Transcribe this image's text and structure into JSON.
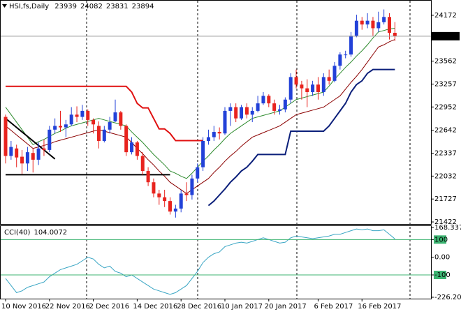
{
  "chart_data": [
    {
      "type": "candlestick",
      "title": "HSI,fs,Daily",
      "categories": [
        "10 Nov 2016",
        null,
        null,
        null,
        null,
        null,
        null,
        null,
        "22 Nov 2016",
        null,
        null,
        null,
        null,
        null,
        null,
        null,
        "2 Dec 2016",
        null,
        null,
        null,
        null,
        null,
        null,
        null,
        "14 Dec 2016",
        null,
        null,
        null,
        null,
        null,
        null,
        null,
        "28 Dec 2016",
        null,
        null,
        null,
        null,
        null,
        null,
        null,
        "10 Jan 2017",
        null,
        null,
        null,
        null,
        null,
        null,
        null,
        "20 Jan 2017",
        null,
        null,
        null,
        null,
        null,
        null,
        null,
        null,
        "6 Feb 2017",
        null,
        null,
        null,
        null,
        null,
        null,
        null,
        "16 Feb 2017",
        null,
        null,
        null,
        null,
        null,
        null
      ],
      "open": [
        22820,
        22300,
        22400,
        22290,
        22200,
        22340,
        22250,
        22400,
        22380,
        22650,
        22700,
        22680,
        22720,
        22850,
        22820,
        22900,
        22780,
        22700,
        22500,
        22650,
        22760,
        22880,
        22700,
        22350,
        22480,
        22300,
        22100,
        21950,
        21800,
        21750,
        21700,
        21560,
        21600,
        21800,
        21780,
        22000,
        22150,
        22500,
        22550,
        22620,
        22600,
        22900,
        22950,
        22800,
        22950,
        22850,
        22900,
        23000,
        23100,
        23000,
        22900,
        22920,
        23050,
        23350,
        23250,
        23200,
        23150,
        23250,
        23150,
        23350,
        23300,
        23500,
        23650,
        23650,
        23900,
        24100,
        24050,
        24100,
        24000,
        24080,
        24150,
        23939
      ],
      "high": [
        22850,
        22500,
        22450,
        22380,
        22420,
        22400,
        22480,
        22520,
        22700,
        22800,
        22900,
        22780,
        22950,
        22960,
        22980,
        22920,
        22800,
        22760,
        22700,
        22820,
        23050,
        22900,
        22720,
        22550,
        22500,
        22350,
        22150,
        22000,
        21850,
        21850,
        21750,
        21650,
        21850,
        21950,
        22050,
        22200,
        22550,
        22650,
        22700,
        22680,
        22950,
        23000,
        23000,
        22980,
        23000,
        22950,
        23100,
        23150,
        23120,
        23050,
        22980,
        23080,
        23400,
        23450,
        23300,
        23320,
        23300,
        23350,
        23400,
        23450,
        23550,
        23680,
        23700,
        23950,
        24180,
        24150,
        24200,
        24150,
        24220,
        24250,
        24200,
        24082
      ],
      "low": [
        22200,
        22250,
        22150,
        22060,
        22100,
        22080,
        22180,
        22300,
        22350,
        22600,
        22620,
        22550,
        22700,
        22750,
        22780,
        22700,
        22600,
        22400,
        22480,
        22600,
        22750,
        22650,
        22300,
        22320,
        22250,
        22050,
        21900,
        21750,
        21650,
        21620,
        21520,
        21480,
        21550,
        21700,
        21720,
        21950,
        22100,
        22450,
        22500,
        22520,
        22580,
        22700,
        22750,
        22780,
        22800,
        22750,
        22880,
        22980,
        22950,
        22850,
        22850,
        22880,
        23000,
        23200,
        23050,
        22950,
        23100,
        23050,
        23100,
        23250,
        23280,
        23450,
        23600,
        23620,
        23880,
        23980,
        24000,
        23900,
        23950,
        24050,
        23850,
        23831
      ],
      "close": [
        22300,
        22420,
        22280,
        22200,
        22350,
        22250,
        22400,
        22380,
        22650,
        22700,
        22680,
        22720,
        22850,
        22820,
        22900,
        22780,
        22720,
        22500,
        22650,
        22750,
        22880,
        22700,
        22350,
        22480,
        22300,
        22100,
        21950,
        21800,
        21750,
        21700,
        21560,
        21600,
        21800,
        21780,
        22000,
        22150,
        22500,
        22550,
        22620,
        22600,
        22900,
        22950,
        22800,
        22950,
        22850,
        22900,
        23000,
        23100,
        23000,
        22900,
        22920,
        23050,
        23350,
        23250,
        23200,
        23150,
        23250,
        23150,
        23350,
        23300,
        23500,
        23650,
        23650,
        23900,
        24100,
        24050,
        24100,
        24000,
        24080,
        24150,
        23939,
        23894
      ],
      "up_color": "#2241d8",
      "down_color": "#e8231e",
      "series": [
        {
          "color": "#2e8b2e",
          "values": [
            22950,
            22850,
            22750,
            22650,
            22550,
            22450,
            22490,
            22520,
            22560,
            22600,
            22630,
            22670,
            22700,
            22720,
            22740,
            22760,
            22780,
            22800,
            22780,
            22760,
            22740,
            22720,
            22700,
            22620,
            22550,
            22480,
            22400,
            22320,
            22250,
            22180,
            22100,
            22070,
            22030,
            22000,
            22070,
            22150,
            22230,
            22300,
            22380,
            22450,
            22530,
            22600,
            22650,
            22700,
            22750,
            22800,
            22820,
            22840,
            22860,
            22880,
            22900,
            22950,
            23000,
            23050,
            23070,
            23090,
            23110,
            23130,
            23150,
            23230,
            23320,
            23400,
            23480,
            23550,
            23630,
            23700,
            23780,
            23870,
            23950,
            23970,
            23990,
            24000
          ]
        },
        {
          "color": "#8b0000",
          "values": [
            22700,
            22640,
            22580,
            22520,
            22460,
            22400,
            22420,
            22440,
            22460,
            22490,
            22510,
            22530,
            22550,
            22570,
            22590,
            22610,
            22630,
            22650,
            22630,
            22610,
            22590,
            22570,
            22550,
            22480,
            22400,
            22330,
            22250,
            22180,
            22100,
            22030,
            21950,
            21900,
            21850,
            21800,
            21850,
            21900,
            21950,
            22000,
            22080,
            22150,
            22230,
            22300,
            22360,
            22430,
            22490,
            22550,
            22580,
            22610,
            22640,
            22670,
            22700,
            22750,
            22800,
            22850,
            22870,
            22890,
            22910,
            22930,
            22950,
            23000,
            23050,
            23100,
            23190,
            23280,
            23360,
            23450,
            23550,
            23650,
            23750,
            23780,
            23820,
            23850
          ]
        },
        {
          "color": "#e01010",
          "width": 2,
          "values": [
            23227,
            23227,
            23227,
            23227,
            23227,
            23227,
            23227,
            23227,
            23227,
            23227,
            23227,
            23227,
            23227,
            23227,
            23227,
            23227,
            23227,
            23227,
            23227,
            23227,
            23227,
            23227,
            23227,
            23150,
            23000,
            22940,
            22940,
            22800,
            22660,
            22660,
            22600,
            22505,
            22505,
            22505,
            22505,
            22505,
            22505,
            null,
            null,
            null,
            null,
            null,
            null,
            null,
            null,
            null,
            null,
            null,
            null,
            null,
            null,
            null,
            null,
            null,
            null,
            null,
            null,
            null,
            null,
            null,
            null,
            null,
            null,
            null,
            null,
            null,
            null,
            null,
            null,
            null,
            null,
            null
          ]
        },
        {
          "color": "#000000",
          "width": 2,
          "values": [
            22800,
            22740,
            22680,
            22620,
            22560,
            22500,
            22440,
            22380,
            22320,
            22260,
            null,
            null,
            null,
            null,
            null,
            null,
            null,
            null,
            null,
            null,
            null,
            null,
            null,
            null,
            null,
            null,
            null,
            null,
            null,
            null,
            null,
            null,
            null,
            null,
            null,
            null,
            null,
            null,
            null,
            null,
            null,
            null,
            null,
            null,
            null,
            null,
            null,
            null,
            null,
            null,
            null,
            null,
            null,
            null,
            null,
            null,
            null,
            null,
            null,
            null,
            null,
            null,
            null,
            null,
            null,
            null,
            null,
            null,
            null,
            null,
            null,
            null
          ]
        },
        {
          "color": "#000000",
          "width": 2,
          "values": [
            22050,
            22050,
            22050,
            22050,
            22050,
            22050,
            22050,
            22050,
            22050,
            22050,
            22050,
            22050,
            22050,
            22050,
            22050,
            22050,
            22050,
            22050,
            22050,
            22050,
            22050,
            22050,
            22050,
            22050,
            22050,
            22050,
            22050,
            22050,
            22050,
            22050,
            22050,
            null,
            null,
            null,
            null,
            null,
            null,
            null,
            null,
            null,
            null,
            null,
            null,
            null,
            null,
            null,
            null,
            null,
            null,
            null,
            null,
            null,
            null,
            null,
            null,
            null,
            null,
            null,
            null,
            null,
            null,
            null,
            null,
            null,
            null,
            null,
            null,
            null,
            null,
            null,
            null,
            null
          ]
        },
        {
          "color": "#0b1f7a",
          "width": 2,
          "values": [
            null,
            null,
            null,
            null,
            null,
            null,
            null,
            null,
            null,
            null,
            null,
            null,
            null,
            null,
            null,
            null,
            null,
            null,
            null,
            null,
            null,
            null,
            null,
            null,
            null,
            null,
            null,
            null,
            null,
            null,
            null,
            null,
            null,
            null,
            null,
            null,
            null,
            21640,
            21700,
            21780,
            21860,
            21950,
            22020,
            22100,
            22150,
            22230,
            22320,
            22320,
            22320,
            22320,
            22320,
            22320,
            22630,
            22630,
            22630,
            22630,
            22630,
            22630,
            22630,
            22700,
            22800,
            22900,
            23000,
            23150,
            23250,
            23300,
            23400,
            23450,
            23450,
            23450,
            23450,
            23450
          ]
        }
      ],
      "ylim": [
        21404,
        24357
      ],
      "yticks": [
        21422,
        21727,
        22032,
        22337,
        22642,
        22952,
        23257,
        23562,
        24172
      ]
    },
    {
      "type": "line",
      "title": "CCI(40)",
      "color": "#3aa6c4",
      "values": [
        -120,
        -160,
        -200,
        -190,
        -170,
        -160,
        -150,
        -140,
        -110,
        -90,
        -70,
        -60,
        -50,
        -40,
        -20,
        0,
        -10,
        -40,
        -60,
        -50,
        -80,
        -90,
        -110,
        -100,
        -120,
        -140,
        -160,
        -180,
        -190,
        -200,
        -210,
        -200,
        -180,
        -160,
        -120,
        -80,
        -30,
        0,
        20,
        30,
        60,
        70,
        80,
        85,
        80,
        90,
        100,
        110,
        100,
        90,
        80,
        85,
        110,
        120,
        115,
        110,
        105,
        110,
        115,
        120,
        130,
        130,
        140,
        150,
        160,
        155,
        160,
        150,
        150,
        155,
        130,
        104.0072
      ],
      "ylim": [
        -226.2077,
        168.3379
      ],
      "yticks": [
        168.3379,
        100,
        {
          "value": 0,
          "label": "0.00"
        },
        -100,
        -226.2077
      ],
      "levels": [
        100,
        -100
      ],
      "level_color": "#3cb371"
    }
  ]
}
